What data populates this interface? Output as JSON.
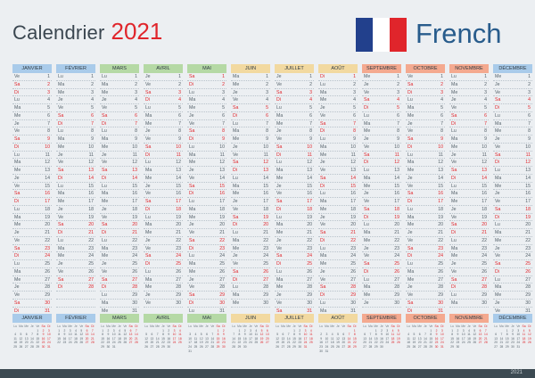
{
  "title": "Calendrier",
  "year": "2021",
  "language": "French",
  "flag_colors": [
    "#22408c",
    "#ffffff",
    "#e0252b"
  ],
  "colors": {
    "weekend": "#e0252b",
    "text": "#55626b",
    "header_text": "#2e3a42",
    "background": "#eceff2"
  },
  "footer_year": "2021",
  "day_abbr": [
    "Lu",
    "Ma",
    "Me",
    "Je",
    "Ve",
    "Sa",
    "Di"
  ],
  "mini_header": [
    "Lu",
    "Ma",
    "Me",
    "Je",
    "Ve",
    "Sa",
    "Di"
  ],
  "months": [
    {
      "name": "JANVIER",
      "color": "#a9cbea",
      "days": 31,
      "start": 4
    },
    {
      "name": "FÉVRIER",
      "color": "#a9cbea",
      "days": 28,
      "start": 0
    },
    {
      "name": "MARS",
      "color": "#b5d9a5",
      "days": 31,
      "start": 0
    },
    {
      "name": "AVRIL",
      "color": "#b5d9a5",
      "days": 30,
      "start": 3
    },
    {
      "name": "MAI",
      "color": "#b5d9a5",
      "days": 31,
      "start": 5
    },
    {
      "name": "JUIN",
      "color": "#f2d9a0",
      "days": 30,
      "start": 1
    },
    {
      "name": "JUILLET",
      "color": "#f2d9a0",
      "days": 31,
      "start": 3
    },
    {
      "name": "AOÛT",
      "color": "#f2d9a0",
      "days": 31,
      "start": 6
    },
    {
      "name": "SEPTEMBRE",
      "color": "#f4a98f",
      "days": 30,
      "start": 2
    },
    {
      "name": "OCTOBRE",
      "color": "#f4a98f",
      "days": 31,
      "start": 4
    },
    {
      "name": "NOVEMBRE",
      "color": "#f4a98f",
      "days": 30,
      "start": 0
    },
    {
      "name": "DÉCEMBRE",
      "color": "#a9cbea",
      "days": 31,
      "start": 2
    }
  ]
}
